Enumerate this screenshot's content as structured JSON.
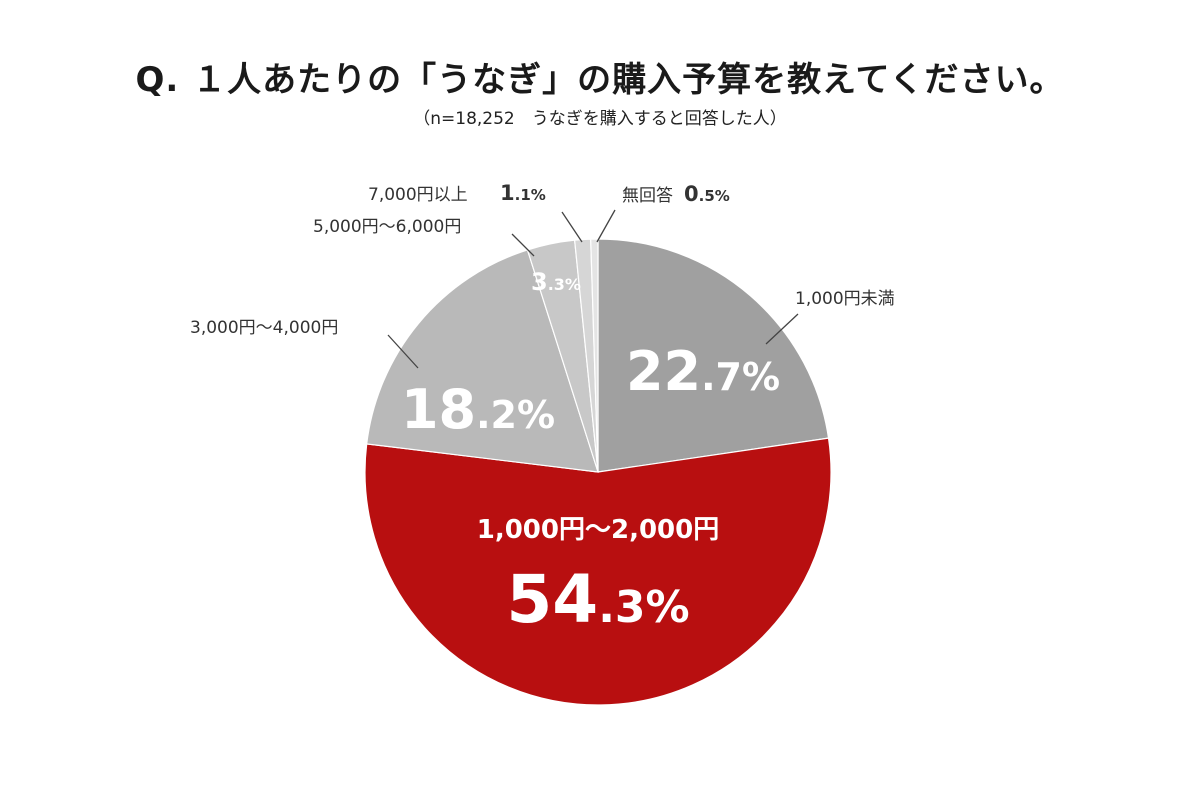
{
  "title": "Q. １人あたりの「うなぎ」の購入予算を教えてください。",
  "subtitle": "（n=18,252　うなぎを購入すると回答した人）",
  "chart_data": {
    "type": "pie",
    "title": "Q. １人あたりの「うなぎ」の購入予算を教えてください。",
    "subtitle": "（n=18,252　うなぎを購入すると回答した人）",
    "start": "12 o'clock, clockwise",
    "slices": [
      {
        "label": "1,000円未満",
        "value": 22.7,
        "int": "22",
        "dec": ".7%",
        "color": "#a0a0a0"
      },
      {
        "label": "1,000円～2,000円",
        "value": 54.3,
        "int": "54",
        "dec": ".3%",
        "color": "#b80f10"
      },
      {
        "label": "3,000円～4,000円",
        "value": 18.2,
        "int": "18",
        "dec": ".2%",
        "color": "#b9b9b9"
      },
      {
        "label": "5,000円～6,000円",
        "value": 3.3,
        "int": "3",
        "dec": ".3%",
        "color": "#c8c8c8"
      },
      {
        "label": "7,000円以上",
        "value": 1.1,
        "int": "1",
        "dec": ".1%",
        "color": "#d6d6d6"
      },
      {
        "label": "無回答",
        "value": 0.5,
        "int": "0",
        "dec": ".5%",
        "color": "#e4e4e4"
      }
    ]
  },
  "colors": {
    "highlight": "#b80f10",
    "text": "#333333"
  }
}
